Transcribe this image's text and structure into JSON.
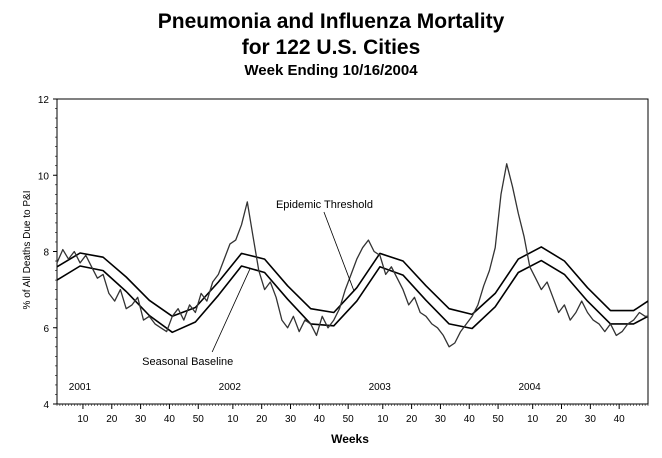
{
  "chart_data": {
    "type": "line",
    "title": "Pneumonia and Influenza Mortality",
    "subtitle_line2": "for 122 U.S. Cities",
    "subtitle": "Week Ending 10/16/2004",
    "xlabel": "Weeks",
    "ylabel": "% of All Deaths Due to P&I",
    "ylim": [
      4,
      12
    ],
    "yticks": [
      "4",
      "6",
      "8",
      "10",
      "12"
    ],
    "x_week_ticks": [
      {
        "week_index": 9,
        "label": "10"
      },
      {
        "week_index": 19,
        "label": "20"
      },
      {
        "week_index": 29,
        "label": "30"
      },
      {
        "week_index": 39,
        "label": "40"
      },
      {
        "week_index": 49,
        "label": "50"
      },
      {
        "week_index": 61,
        "label": "10"
      },
      {
        "week_index": 71,
        "label": "20"
      },
      {
        "week_index": 81,
        "label": "30"
      },
      {
        "week_index": 91,
        "label": "40"
      },
      {
        "week_index": 101,
        "label": "50"
      },
      {
        "week_index": 113,
        "label": "10"
      },
      {
        "week_index": 123,
        "label": "20"
      },
      {
        "week_index": 133,
        "label": "30"
      },
      {
        "week_index": 143,
        "label": "40"
      },
      {
        "week_index": 153,
        "label": "50"
      },
      {
        "week_index": 165,
        "label": "10"
      },
      {
        "week_index": 175,
        "label": "20"
      },
      {
        "week_index": 185,
        "label": "30"
      },
      {
        "week_index": 195,
        "label": "40"
      }
    ],
    "year_labels": [
      {
        "week_index": 2,
        "label": "2001"
      },
      {
        "week_index": 54,
        "label": "2002"
      },
      {
        "week_index": 106,
        "label": "2003"
      },
      {
        "week_index": 158,
        "label": "2004"
      }
    ],
    "annotations": [
      {
        "text": "Epidemic Threshold",
        "series": "threshold",
        "week_index": 103
      },
      {
        "text": "Seasonal Baseline",
        "series": "baseline",
        "week_index": 67
      }
    ],
    "x_range": [
      0,
      205
    ],
    "series": [
      {
        "key": "threshold",
        "values": [
          [
            0,
            7.6
          ],
          [
            8,
            7.96
          ],
          [
            16,
            7.85
          ],
          [
            24,
            7.33
          ],
          [
            32,
            6.72
          ],
          [
            40,
            6.3
          ],
          [
            48,
            6.53
          ],
          [
            56,
            7.2
          ],
          [
            64,
            7.95
          ],
          [
            72,
            7.8
          ],
          [
            80,
            7.1
          ],
          [
            88,
            6.5
          ],
          [
            96,
            6.4
          ],
          [
            104,
            7.05
          ],
          [
            112,
            7.95
          ],
          [
            120,
            7.75
          ],
          [
            128,
            7.1
          ],
          [
            136,
            6.5
          ],
          [
            144,
            6.35
          ],
          [
            152,
            6.9
          ],
          [
            160,
            7.8
          ],
          [
            168,
            8.12
          ],
          [
            176,
            7.75
          ],
          [
            184,
            7.05
          ],
          [
            192,
            6.45
          ],
          [
            200,
            6.45
          ],
          [
            205,
            6.7
          ]
        ]
      },
      {
        "key": "baseline",
        "values": [
          [
            0,
            7.25
          ],
          [
            8,
            7.62
          ],
          [
            16,
            7.5
          ],
          [
            24,
            6.95
          ],
          [
            32,
            6.32
          ],
          [
            40,
            5.88
          ],
          [
            48,
            6.15
          ],
          [
            56,
            6.85
          ],
          [
            64,
            7.62
          ],
          [
            72,
            7.45
          ],
          [
            80,
            6.75
          ],
          [
            88,
            6.1
          ],
          [
            96,
            6.05
          ],
          [
            104,
            6.7
          ],
          [
            112,
            7.6
          ],
          [
            120,
            7.38
          ],
          [
            128,
            6.72
          ],
          [
            136,
            6.1
          ],
          [
            144,
            5.98
          ],
          [
            152,
            6.55
          ],
          [
            160,
            7.45
          ],
          [
            168,
            7.76
          ],
          [
            176,
            7.4
          ],
          [
            184,
            6.7
          ],
          [
            192,
            6.1
          ],
          [
            200,
            6.1
          ],
          [
            205,
            6.3
          ]
        ]
      },
      {
        "key": "observed",
        "values": [
          [
            0,
            7.7
          ],
          [
            2,
            8.05
          ],
          [
            4,
            7.8
          ],
          [
            6,
            8.0
          ],
          [
            8,
            7.7
          ],
          [
            10,
            7.9
          ],
          [
            12,
            7.6
          ],
          [
            14,
            7.3
          ],
          [
            16,
            7.4
          ],
          [
            18,
            6.9
          ],
          [
            20,
            6.7
          ],
          [
            22,
            7.0
          ],
          [
            24,
            6.5
          ],
          [
            26,
            6.6
          ],
          [
            28,
            6.8
          ],
          [
            30,
            6.2
          ],
          [
            32,
            6.3
          ],
          [
            34,
            6.1
          ],
          [
            36,
            6.0
          ],
          [
            38,
            5.9
          ],
          [
            40,
            6.3
          ],
          [
            42,
            6.5
          ],
          [
            44,
            6.2
          ],
          [
            46,
            6.6
          ],
          [
            48,
            6.4
          ],
          [
            50,
            6.9
          ],
          [
            52,
            6.7
          ],
          [
            54,
            7.2
          ],
          [
            56,
            7.4
          ],
          [
            58,
            7.8
          ],
          [
            60,
            8.2
          ],
          [
            62,
            8.3
          ],
          [
            64,
            8.7
          ],
          [
            66,
            9.3
          ],
          [
            68,
            8.4
          ],
          [
            70,
            7.5
          ],
          [
            72,
            7.0
          ],
          [
            74,
            7.2
          ],
          [
            76,
            6.8
          ],
          [
            78,
            6.2
          ],
          [
            80,
            6.0
          ],
          [
            82,
            6.3
          ],
          [
            84,
            5.9
          ],
          [
            86,
            6.2
          ],
          [
            88,
            6.1
          ],
          [
            90,
            5.8
          ],
          [
            92,
            6.3
          ],
          [
            94,
            6.0
          ],
          [
            96,
            6.2
          ],
          [
            98,
            6.5
          ],
          [
            100,
            7.0
          ],
          [
            102,
            7.4
          ],
          [
            104,
            7.8
          ],
          [
            106,
            8.1
          ],
          [
            108,
            8.3
          ],
          [
            110,
            8.0
          ],
          [
            112,
            7.9
          ],
          [
            114,
            7.4
          ],
          [
            116,
            7.6
          ],
          [
            118,
            7.3
          ],
          [
            120,
            7.0
          ],
          [
            122,
            6.6
          ],
          [
            124,
            6.8
          ],
          [
            126,
            6.4
          ],
          [
            128,
            6.3
          ],
          [
            130,
            6.1
          ],
          [
            132,
            6.0
          ],
          [
            134,
            5.8
          ],
          [
            136,
            5.5
          ],
          [
            138,
            5.6
          ],
          [
            140,
            5.9
          ],
          [
            142,
            6.1
          ],
          [
            144,
            6.3
          ],
          [
            146,
            6.6
          ],
          [
            148,
            7.1
          ],
          [
            150,
            7.5
          ],
          [
            152,
            8.1
          ],
          [
            154,
            9.5
          ],
          [
            156,
            10.3
          ],
          [
            158,
            9.7
          ],
          [
            160,
            9.0
          ],
          [
            162,
            8.4
          ],
          [
            164,
            7.6
          ],
          [
            166,
            7.3
          ],
          [
            168,
            7.0
          ],
          [
            170,
            7.2
          ],
          [
            172,
            6.8
          ],
          [
            174,
            6.4
          ],
          [
            176,
            6.6
          ],
          [
            178,
            6.2
          ],
          [
            180,
            6.4
          ],
          [
            182,
            6.7
          ],
          [
            184,
            6.4
          ],
          [
            186,
            6.2
          ],
          [
            188,
            6.1
          ],
          [
            190,
            5.9
          ],
          [
            192,
            6.1
          ],
          [
            194,
            5.8
          ],
          [
            196,
            5.9
          ],
          [
            198,
            6.1
          ],
          [
            200,
            6.2
          ],
          [
            202,
            6.4
          ],
          [
            204,
            6.3
          ],
          [
            205,
            6.3
          ]
        ]
      }
    ]
  }
}
